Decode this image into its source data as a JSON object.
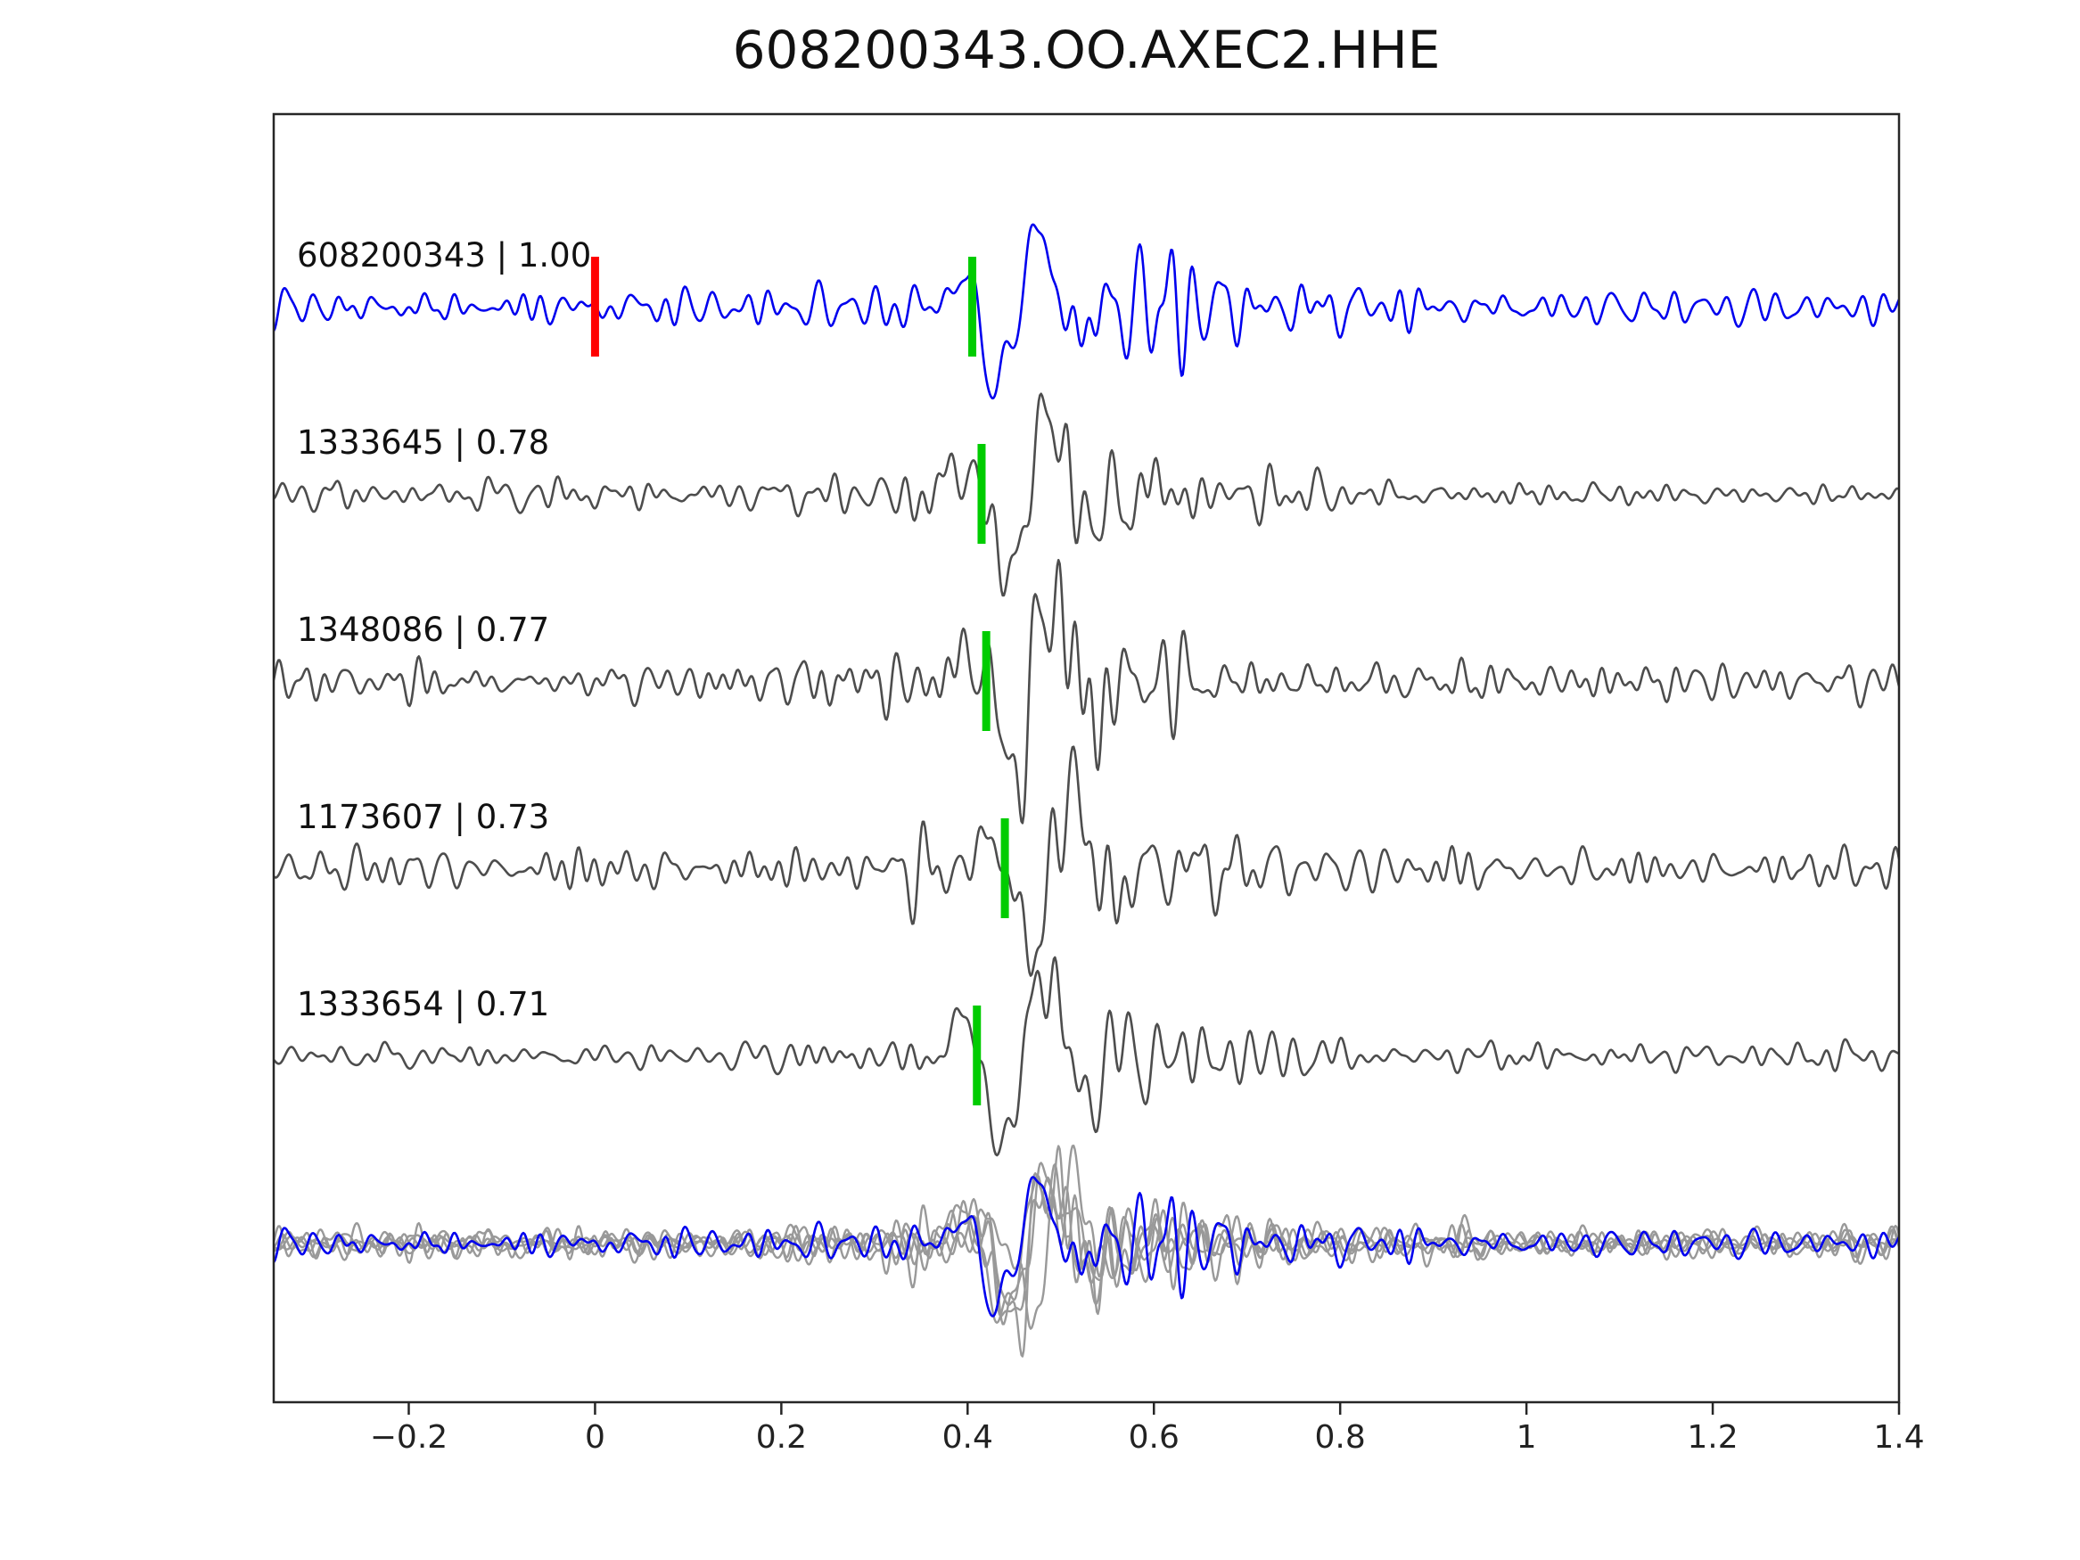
{
  "chart_data": {
    "type": "line",
    "title": "608200343.OO.AXEC2.HHE",
    "xlabel": "",
    "ylabel": "",
    "x_range": [
      -0.345,
      1.4
    ],
    "x_tick_values": [
      -0.2,
      0,
      0.2,
      0.4,
      0.6,
      0.8,
      1,
      1.2,
      1.4
    ],
    "x_ticks": [
      "−0.2",
      "0",
      "0.2",
      "0.4",
      "0.6",
      "0.8",
      "1",
      "1.2",
      "1.4"
    ],
    "grid": false,
    "legend": false,
    "colors": {
      "detection": "#0000ee",
      "template": "#4d4d4d",
      "overlay_gray": "#999999",
      "pick": "#00cc00",
      "reference": "#ff0000",
      "axis": "#262626"
    },
    "traces": [
      {
        "id": "608200343",
        "correlation": "1.00",
        "label": "608200343 | 1.00",
        "color_role": "detection",
        "row": 1,
        "pick_x": 0.405,
        "ref_x": 0.0,
        "seed": 11,
        "base_amp": 12,
        "event_amp": 2.3,
        "event_center": 0.52,
        "wavelet_amp": 82
      },
      {
        "id": "1333645",
        "correlation": "0.78",
        "label": "1333645 | 0.78",
        "color_role": "template",
        "row": 2,
        "pick_x": 0.415,
        "ref_x": null,
        "seed": 23,
        "base_amp": 10,
        "event_amp": 2.6,
        "event_center": 0.52,
        "wavelet_amp": 98
      },
      {
        "id": "1348086",
        "correlation": "0.77",
        "label": "1348086 | 0.77",
        "color_role": "template",
        "row": 3,
        "pick_x": 0.42,
        "ref_x": null,
        "seed": 37,
        "base_amp": 14,
        "event_amp": 2.2,
        "event_center": 0.5,
        "wavelet_amp": 100
      },
      {
        "id": "1173607",
        "correlation": "0.73",
        "label": "1173607 | 0.73",
        "color_role": "template",
        "row": 4,
        "pick_x": 0.44,
        "ref_x": null,
        "seed": 49,
        "base_amp": 16,
        "event_amp": 2.0,
        "event_center": 0.52,
        "wavelet_amp": 92
      },
      {
        "id": "1333654",
        "correlation": "0.71",
        "label": "1333654 | 0.71",
        "color_role": "template",
        "row": 5,
        "pick_x": 0.41,
        "ref_x": null,
        "seed": 61,
        "base_amp": 11,
        "event_amp": 2.4,
        "event_center": 0.53,
        "wavelet_amp": 100
      }
    ],
    "overlay": {
      "row": 6,
      "amp_scale": 0.8,
      "gray_members": [
        1,
        2,
        3,
        4
      ],
      "extra_gray_seed": 77,
      "blue_member": 0
    }
  }
}
